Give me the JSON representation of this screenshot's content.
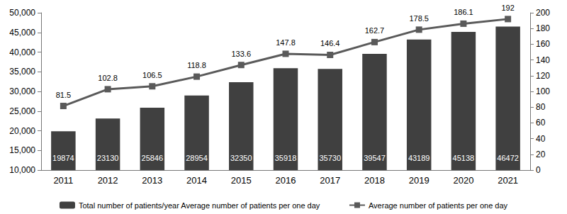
{
  "chart_data": {
    "type": "bar",
    "categories": [
      "2011",
      "2012",
      "2013",
      "2014",
      "2015",
      "2016",
      "2017",
      "2018",
      "2019",
      "2020",
      "2021"
    ],
    "series": [
      {
        "name": "Total number of patients/year Average number of patients per one day",
        "type": "bar",
        "color": "#404040",
        "values": [
          19874,
          23130,
          25846,
          28954,
          32350,
          35918,
          35730,
          39547,
          43189,
          45138,
          46472
        ]
      },
      {
        "name": "Average number of patients per one day",
        "type": "line",
        "axis": "y2",
        "color": "#5a5a5a",
        "marker": "square",
        "line_style": "solid",
        "values": [
          81.5,
          102.8,
          106.5,
          118.8,
          133.6,
          147.8,
          146.4,
          162.7,
          178.5,
          186.1,
          192
        ]
      }
    ],
    "ylim": [
      10000,
      50000
    ],
    "yticks": [
      10000,
      15000,
      20000,
      25000,
      30000,
      35000,
      40000,
      45000,
      50000
    ],
    "y2lim": [
      0,
      200
    ],
    "y2ticks": [
      0,
      20,
      40,
      60,
      80,
      100,
      120,
      140,
      160,
      180,
      200
    ],
    "grid": false,
    "legend": "bottom",
    "data_labels": true
  }
}
